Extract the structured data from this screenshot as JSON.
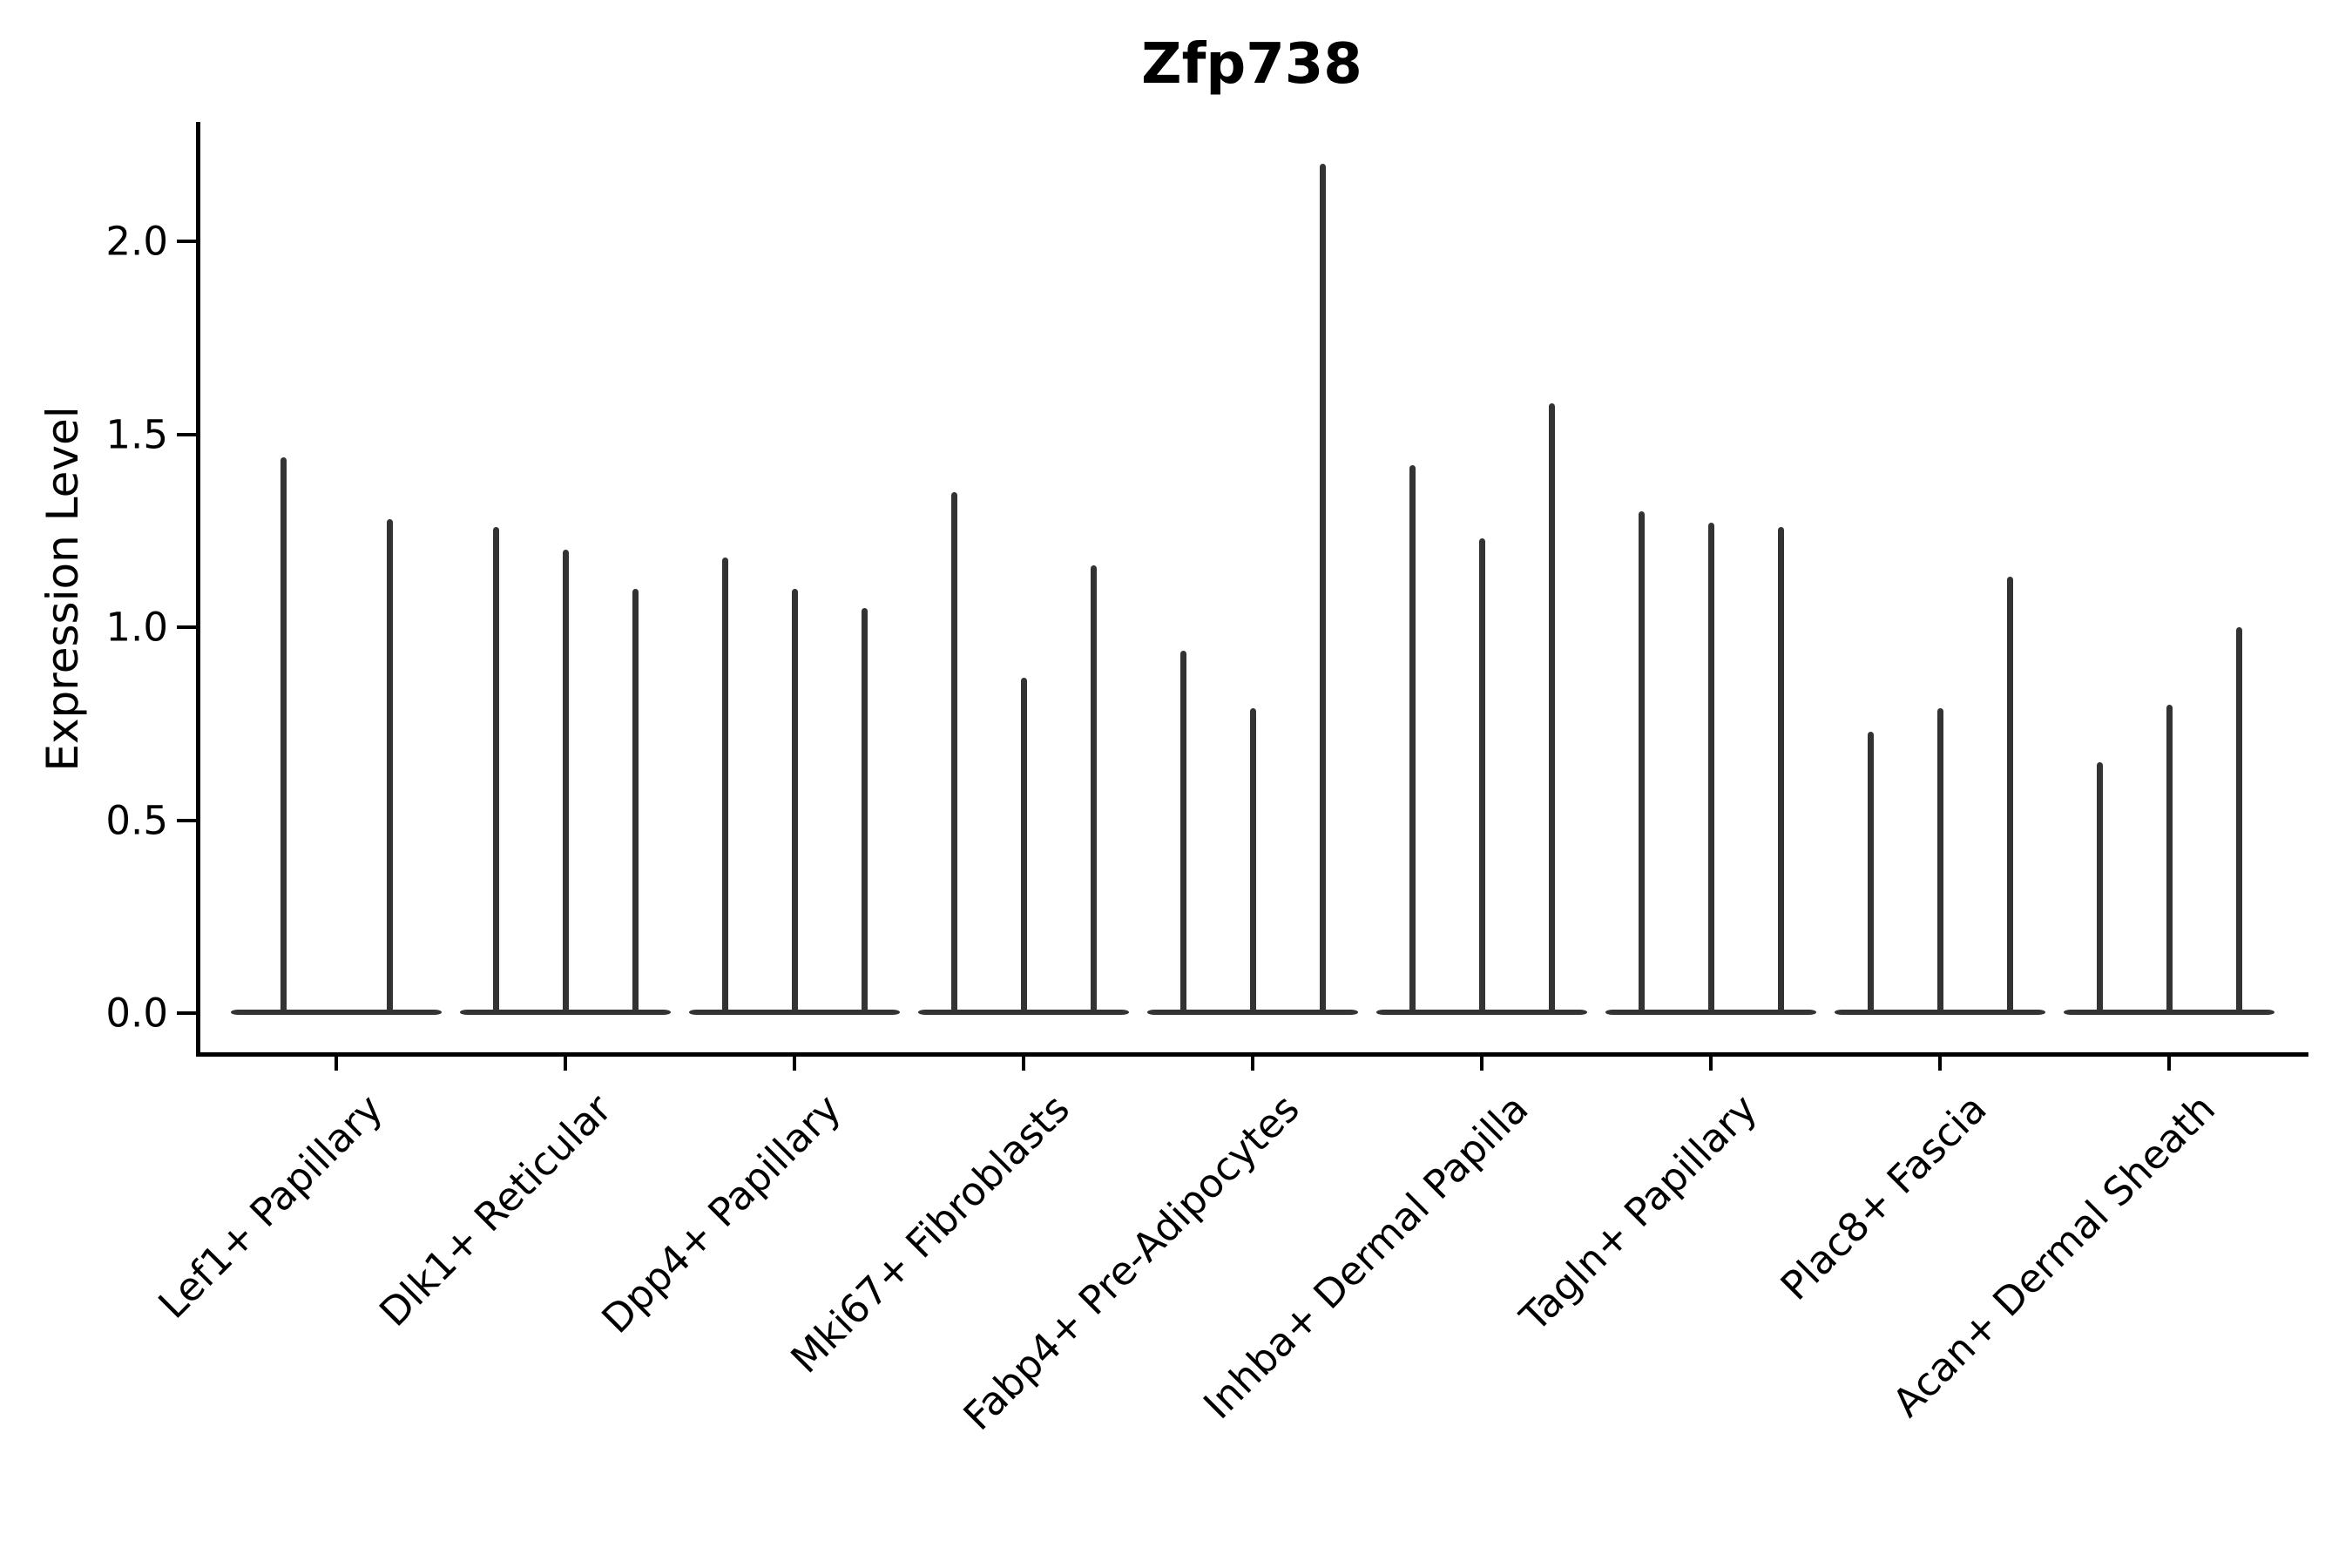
{
  "chart_data": {
    "type": "violin",
    "title": "Zfp738",
    "ylabel": "Expression Level",
    "xlabel": "",
    "grid": false,
    "legend": false,
    "ylim": [
      0,
      2.31
    ],
    "yticks": [
      {
        "label": "2.0",
        "value": 2.0
      },
      {
        "label": "1.5",
        "value": 1.5
      },
      {
        "label": "1.0",
        "value": 1.0
      },
      {
        "label": "0.5",
        "value": 0.5
      },
      {
        "label": "0.0",
        "value": 0.0
      }
    ],
    "categories": [
      "Lef1+ Papillary",
      "Dlk1+ Reticular",
      "Dpp4+ Papillary",
      "Mki67+ Fibroblasts",
      "Fabp4+ Pre-Adipocytes",
      "Inhba+ Dermal Papilla",
      "Tagln+ Papillary",
      "Plac8+ Fascia",
      "Acan+ Dermal Sheath"
    ],
    "groups": [
      {
        "category": "Lef1+ Papillary",
        "violin_max_expression": [
          1.44,
          1.28
        ]
      },
      {
        "category": "Dlk1+ Reticular",
        "violin_max_expression": [
          1.26,
          1.2,
          1.1
        ]
      },
      {
        "category": "Dpp4+ Papillary",
        "violin_max_expression": [
          1.18,
          1.1,
          1.05
        ]
      },
      {
        "category": "Mki67+ Fibroblasts",
        "violin_max_expression": [
          1.35,
          0.87,
          1.16
        ]
      },
      {
        "category": "Fabp4+ Pre-Adipocytes",
        "violin_max_expression": [
          0.94,
          0.79,
          2.2
        ]
      },
      {
        "category": "Inhba+ Dermal Papilla",
        "violin_max_expression": [
          1.42,
          1.23,
          1.58
        ]
      },
      {
        "category": "Tagln+ Papillary",
        "violin_max_expression": [
          1.3,
          1.27,
          1.26
        ]
      },
      {
        "category": "Plac8+ Fascia",
        "violin_max_expression": [
          0.73,
          0.79,
          1.13
        ]
      },
      {
        "category": "Acan+ Dermal Sheath",
        "violin_max_expression": [
          0.65,
          0.8,
          1.0
        ]
      }
    ],
    "colors": {
      "violin": "#333333",
      "axis": "#000000",
      "text": "#000000",
      "background": "#ffffff"
    }
  }
}
